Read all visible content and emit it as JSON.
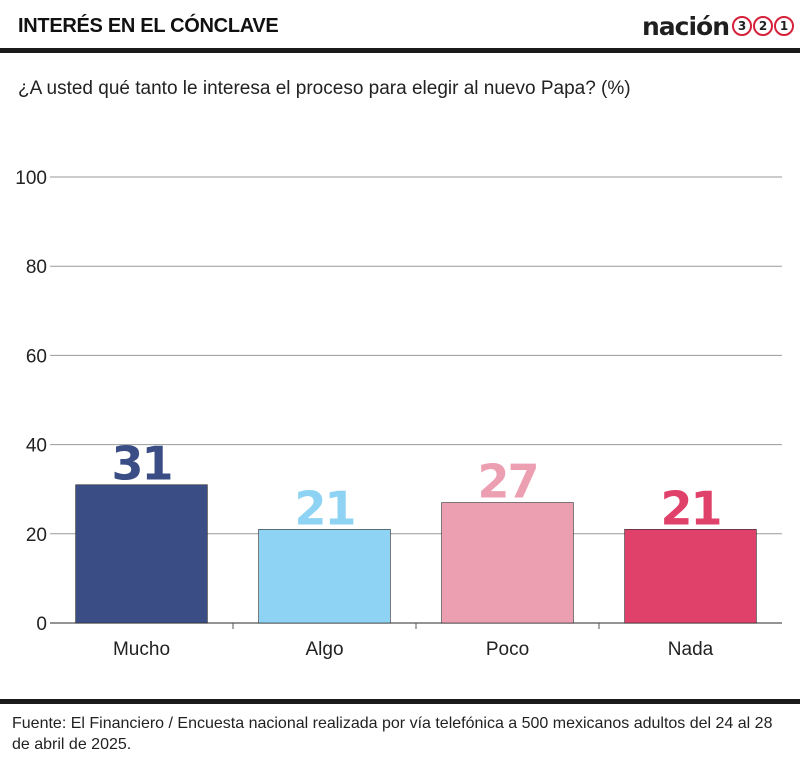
{
  "header": {
    "title": "INTERÉS EN EL CÓNCLAVE",
    "logo_text": "nación",
    "logo_digits": [
      "3",
      "2",
      "1"
    ]
  },
  "question": "¿A usted qué tanto le interesa el proceso para elegir al nuevo Papa? (%)",
  "source": "Fuente: El Financiero / Encuesta nacional realizada por vía telefónica a 500 mexicanos adultos del 24 al 28 de abril de 2025.",
  "colors": {
    "accent": "#d6213a",
    "rule": "#1a1a1a"
  },
  "chart_data": {
    "type": "bar",
    "title": "",
    "xlabel": "",
    "ylabel": "",
    "categories": [
      "Mucho",
      "Algo",
      "Poco",
      "Nada"
    ],
    "values": [
      31,
      21,
      27,
      21
    ],
    "colors": [
      "#3a4d85",
      "#8ed3f3",
      "#ed9fb2",
      "#e0416a"
    ],
    "ylim": [
      0,
      100
    ],
    "yticks": [
      0,
      20,
      40,
      60,
      80,
      100
    ],
    "grid": true,
    "legend": "none"
  }
}
